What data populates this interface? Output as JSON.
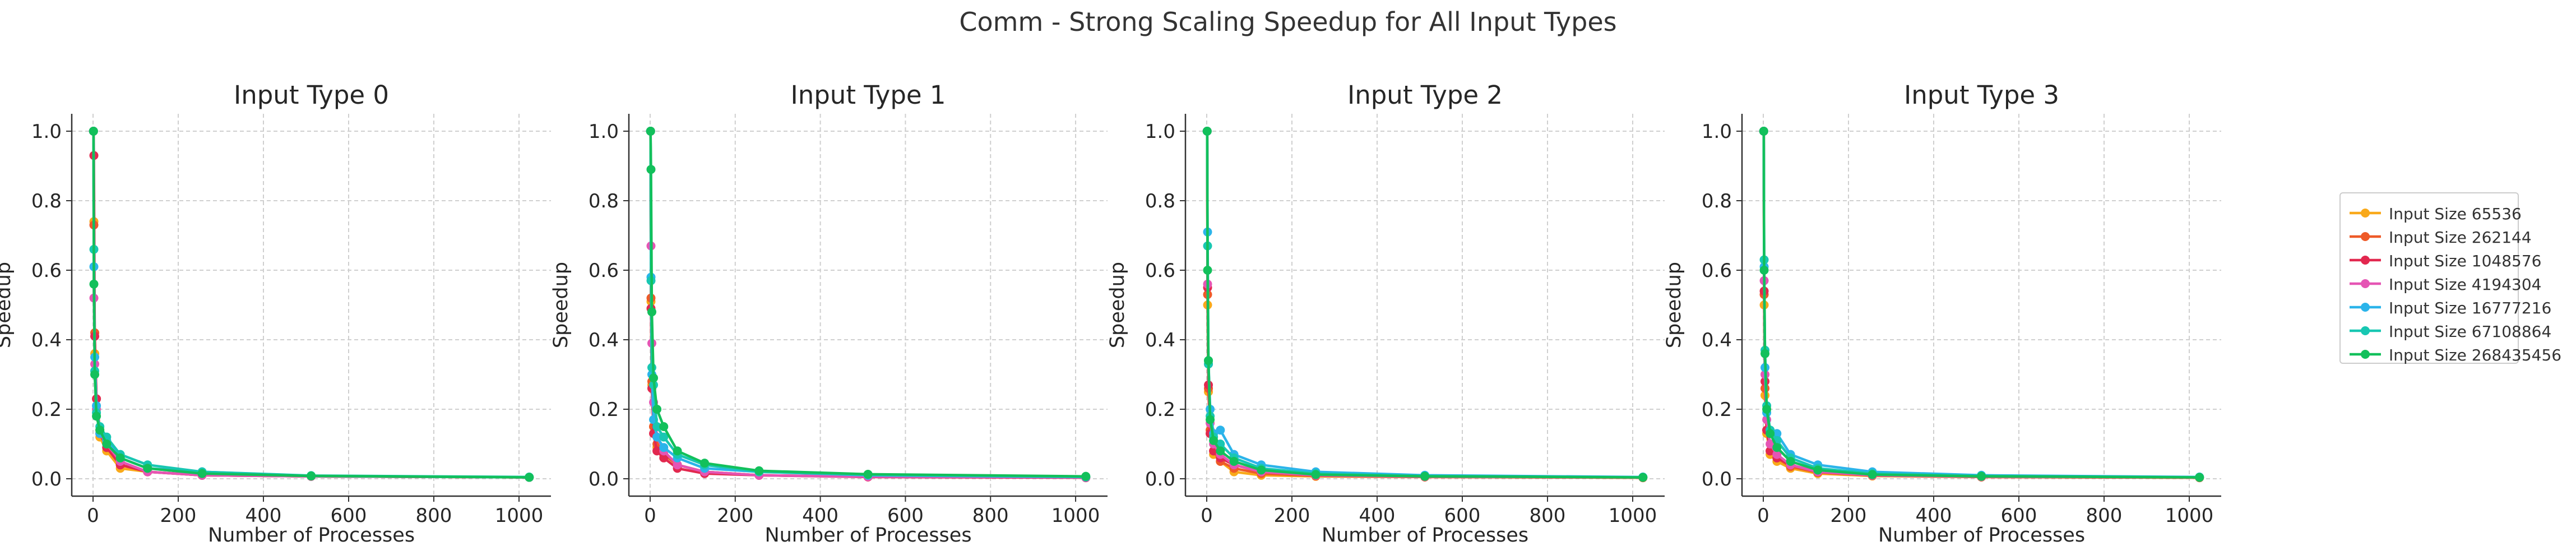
{
  "suptitle": "Comm - Strong Scaling Speedup for All Input Types",
  "legend": {
    "entries": [
      {
        "label": "Input Size 65536",
        "color": "#f9a91a"
      },
      {
        "label": "Input Size 262144",
        "color": "#ee5a28"
      },
      {
        "label": "Input Size 1048576",
        "color": "#e2284f"
      },
      {
        "label": "Input Size 4194304",
        "color": "#e555b4"
      },
      {
        "label": "Input Size 16777216",
        "color": "#2bb4ea"
      },
      {
        "label": "Input Size 67108864",
        "color": "#18c7b2"
      },
      {
        "label": "Input Size 268435456",
        "color": "#12c05b"
      }
    ]
  },
  "chart_data": [
    {
      "type": "line",
      "title": "Input Type 0",
      "xlabel": "Number of Processes",
      "ylabel": "Speedup",
      "x": [
        1,
        2,
        4,
        8,
        16,
        32,
        64,
        128,
        256,
        512,
        1024
      ],
      "xlim": [
        -50,
        1075
      ],
      "ylim": [
        -0.05,
        1.05
      ],
      "xticks": [
        0,
        200,
        400,
        600,
        800,
        1000
      ],
      "yticks": [
        0.0,
        0.2,
        0.4,
        0.6,
        0.8,
        1.0
      ],
      "grid": true,
      "series": [
        {
          "name": "Input Size 65536",
          "values": [
            1.0,
            0.74,
            0.36,
            0.2,
            0.12,
            0.08,
            0.03,
            0.02,
            0.01,
            0.007,
            0.004
          ]
        },
        {
          "name": "Input Size 262144",
          "values": [
            1.0,
            0.73,
            0.42,
            0.23,
            0.14,
            0.09,
            0.04,
            0.02,
            0.01,
            0.007,
            0.004
          ]
        },
        {
          "name": "Input Size 1048576",
          "values": [
            1.0,
            0.93,
            0.41,
            0.23,
            0.13,
            0.09,
            0.04,
            0.02,
            0.01,
            0.007,
            0.004
          ]
        },
        {
          "name": "Input Size 4194304",
          "values": [
            1.0,
            0.52,
            0.33,
            0.2,
            0.13,
            0.1,
            0.05,
            0.02,
            0.01,
            0.007,
            0.004
          ]
        },
        {
          "name": "Input Size 16777216",
          "values": [
            1.0,
            0.61,
            0.35,
            0.21,
            0.13,
            0.11,
            0.06,
            0.03,
            0.02,
            0.008,
            0.004
          ]
        },
        {
          "name": "Input Size 67108864",
          "values": [
            1.0,
            0.66,
            0.31,
            0.19,
            0.15,
            0.12,
            0.07,
            0.04,
            0.02,
            0.009,
            0.005
          ]
        },
        {
          "name": "Input Size 268435456",
          "values": [
            1.0,
            0.56,
            0.3,
            0.18,
            0.14,
            0.1,
            0.06,
            0.03,
            0.015,
            0.008,
            0.004
          ]
        }
      ]
    },
    {
      "type": "line",
      "title": "Input Type 1",
      "xlabel": "Number of Processes",
      "ylabel": "Speedup",
      "x": [
        1,
        2,
        4,
        8,
        16,
        32,
        64,
        128,
        256,
        512,
        1024
      ],
      "xlim": [
        -50,
        1075
      ],
      "ylim": [
        -0.05,
        1.05
      ],
      "xticks": [
        0,
        200,
        400,
        600,
        800,
        1000
      ],
      "yticks": [
        0.0,
        0.2,
        0.4,
        0.6,
        0.8,
        1.0
      ],
      "grid": true,
      "series": [
        {
          "name": "Input Size 65536",
          "values": [
            1.0,
            0.51,
            0.27,
            0.15,
            0.09,
            0.07,
            0.04,
            0.02,
            0.01,
            0.006,
            0.004
          ]
        },
        {
          "name": "Input Size 262144",
          "values": [
            1.0,
            0.52,
            0.28,
            0.15,
            0.1,
            0.07,
            0.04,
            0.02,
            0.01,
            0.006,
            0.004
          ]
        },
        {
          "name": "Input Size 1048576",
          "values": [
            1.0,
            0.49,
            0.26,
            0.13,
            0.08,
            0.06,
            0.03,
            0.015,
            0.01,
            0.005,
            0.003
          ]
        },
        {
          "name": "Input Size 4194304",
          "values": [
            1.0,
            0.67,
            0.39,
            0.22,
            0.12,
            0.08,
            0.04,
            0.02,
            0.01,
            0.006,
            0.004
          ]
        },
        {
          "name": "Input Size 16777216",
          "values": [
            1.0,
            0.58,
            0.3,
            0.17,
            0.12,
            0.09,
            0.06,
            0.03,
            0.02,
            0.01,
            0.005
          ]
        },
        {
          "name": "Input Size 67108864",
          "values": [
            1.0,
            0.57,
            0.32,
            0.27,
            0.15,
            0.12,
            0.07,
            0.04,
            0.02,
            0.012,
            0.006
          ]
        },
        {
          "name": "Input Size 268435456",
          "values": [
            1.0,
            0.89,
            0.48,
            0.29,
            0.2,
            0.15,
            0.08,
            0.045,
            0.023,
            0.013,
            0.007
          ]
        }
      ]
    },
    {
      "type": "line",
      "title": "Input Type 2",
      "xlabel": "Number of Processes",
      "ylabel": "Speedup",
      "x": [
        1,
        2,
        4,
        8,
        16,
        32,
        64,
        128,
        256,
        512,
        1024
      ],
      "xlim": [
        -50,
        1075
      ],
      "ylim": [
        -0.05,
        1.05
      ],
      "xticks": [
        0,
        200,
        400,
        600,
        800,
        1000
      ],
      "yticks": [
        0.0,
        0.2,
        0.4,
        0.6,
        0.8,
        1.0
      ],
      "grid": true,
      "series": [
        {
          "name": "Input Size 65536",
          "values": [
            1.0,
            0.5,
            0.25,
            0.13,
            0.07,
            0.05,
            0.02,
            0.01,
            0.007,
            0.005,
            0.003
          ]
        },
        {
          "name": "Input Size 262144",
          "values": [
            1.0,
            0.53,
            0.26,
            0.14,
            0.08,
            0.05,
            0.03,
            0.015,
            0.008,
            0.005,
            0.003
          ]
        },
        {
          "name": "Input Size 1048576",
          "values": [
            1.0,
            0.55,
            0.27,
            0.13,
            0.08,
            0.06,
            0.04,
            0.02,
            0.01,
            0.006,
            0.004
          ]
        },
        {
          "name": "Input Size 4194304",
          "values": [
            1.0,
            0.56,
            0.33,
            0.16,
            0.1,
            0.07,
            0.04,
            0.02,
            0.01,
            0.006,
            0.004
          ]
        },
        {
          "name": "Input Size 16777216",
          "values": [
            1.0,
            0.71,
            0.34,
            0.2,
            0.13,
            0.14,
            0.07,
            0.04,
            0.02,
            0.01,
            0.005
          ]
        },
        {
          "name": "Input Size 67108864",
          "values": [
            1.0,
            0.67,
            0.33,
            0.18,
            0.12,
            0.1,
            0.06,
            0.03,
            0.015,
            0.008,
            0.004
          ]
        },
        {
          "name": "Input Size 268435456",
          "values": [
            1.0,
            0.6,
            0.34,
            0.17,
            0.11,
            0.08,
            0.05,
            0.025,
            0.012,
            0.007,
            0.004
          ]
        }
      ]
    },
    {
      "type": "line",
      "title": "Input Type 3",
      "xlabel": "Number of Processes",
      "ylabel": "Speedup",
      "x": [
        1,
        2,
        4,
        8,
        16,
        32,
        64,
        128,
        256,
        512,
        1024
      ],
      "xlim": [
        -50,
        1075
      ],
      "ylim": [
        -0.05,
        1.05
      ],
      "xticks": [
        0,
        200,
        400,
        600,
        800,
        1000
      ],
      "yticks": [
        0.0,
        0.2,
        0.4,
        0.6,
        0.8,
        1.0
      ],
      "grid": true,
      "series": [
        {
          "name": "Input Size 65536",
          "values": [
            1.0,
            0.5,
            0.24,
            0.13,
            0.07,
            0.05,
            0.03,
            0.015,
            0.008,
            0.005,
            0.003
          ]
        },
        {
          "name": "Input Size 262144",
          "values": [
            1.0,
            0.53,
            0.26,
            0.14,
            0.08,
            0.06,
            0.035,
            0.018,
            0.009,
            0.005,
            0.003
          ]
        },
        {
          "name": "Input Size 1048576",
          "values": [
            1.0,
            0.54,
            0.28,
            0.14,
            0.08,
            0.06,
            0.04,
            0.02,
            0.01,
            0.006,
            0.004
          ]
        },
        {
          "name": "Input Size 4194304",
          "values": [
            1.0,
            0.57,
            0.3,
            0.17,
            0.1,
            0.07,
            0.04,
            0.02,
            0.01,
            0.006,
            0.004
          ]
        },
        {
          "name": "Input Size 16777216",
          "values": [
            1.0,
            0.61,
            0.32,
            0.19,
            0.14,
            0.13,
            0.07,
            0.04,
            0.02,
            0.01,
            0.005
          ]
        },
        {
          "name": "Input Size 67108864",
          "values": [
            1.0,
            0.63,
            0.37,
            0.21,
            0.14,
            0.11,
            0.06,
            0.03,
            0.015,
            0.008,
            0.004
          ]
        },
        {
          "name": "Input Size 268435456",
          "values": [
            1.0,
            0.6,
            0.36,
            0.2,
            0.13,
            0.09,
            0.05,
            0.025,
            0.012,
            0.007,
            0.004
          ]
        }
      ]
    }
  ]
}
